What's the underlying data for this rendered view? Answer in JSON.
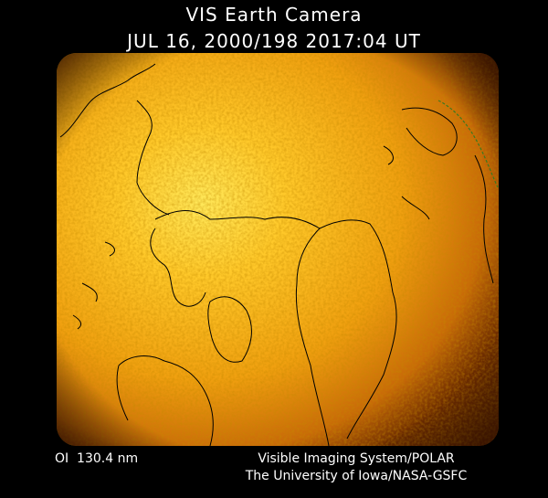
{
  "header": {
    "title": "VIS Earth Camera",
    "timestamp": "JUL 16, 2000/198 2017:04 UT"
  },
  "footer": {
    "wavelength": "OI  130.4 nm",
    "instrument": "Visible Imaging System/POLAR",
    "credit": "The University of Iowa/NASA-GSFC"
  }
}
